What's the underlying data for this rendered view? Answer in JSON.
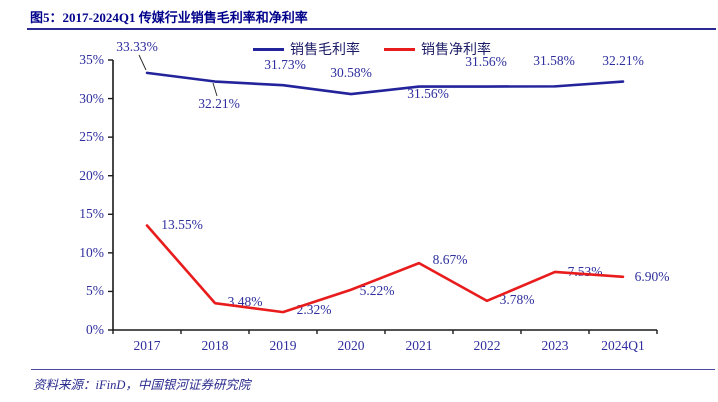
{
  "header": {
    "figure_label": "图5：",
    "title": "2017-2024Q1 传媒行业销售毛利率和净利率"
  },
  "chart_data": {
    "type": "line",
    "title": "2017-2024Q1 传媒行业销售毛利率和净利率",
    "categories": [
      "2017",
      "2018",
      "2019",
      "2020",
      "2021",
      "2022",
      "2023",
      "2024Q1"
    ],
    "series": [
      {
        "name": "销售毛利率",
        "color": "#23239b",
        "values": [
          33.33,
          32.21,
          31.73,
          30.58,
          31.56,
          31.56,
          31.58,
          32.21
        ]
      },
      {
        "name": "销售净利率",
        "color": "#e81c1c",
        "values": [
          13.55,
          3.48,
          2.32,
          5.22,
          8.67,
          3.78,
          7.53,
          6.9
        ]
      }
    ],
    "value_suffix": "%",
    "ylim": [
      0,
      35
    ],
    "yticks": [
      0,
      5,
      10,
      15,
      20,
      25,
      30,
      35
    ],
    "ytick_labels": [
      "0%",
      "5%",
      "10%",
      "15%",
      "20%",
      "25%",
      "30%",
      "35%"
    ],
    "grid": false,
    "legend_position": "top-center",
    "label_color": "#2e2e9e",
    "axis_color": "#1a1a1a"
  },
  "footer": {
    "source": "资料来源：iFinD，中国银河证券研究院"
  }
}
